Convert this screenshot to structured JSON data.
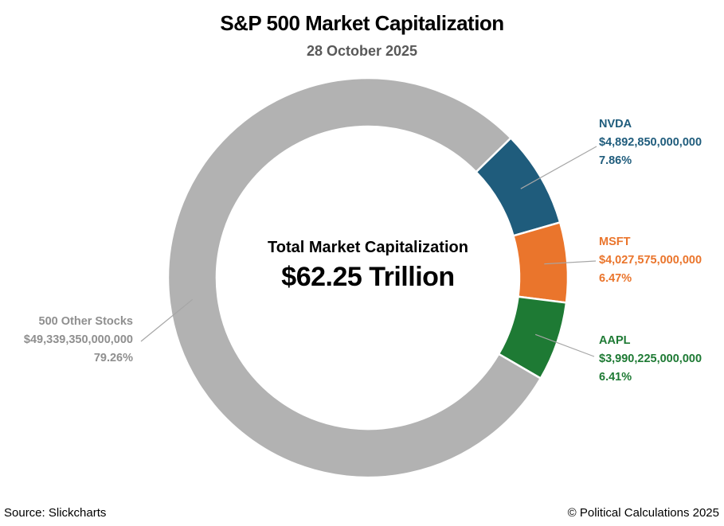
{
  "chart_data": {
    "type": "pie",
    "donut": true,
    "title": "S&P 500 Market Capitalization",
    "subtitle": "28 October 2025",
    "total_label": "Total Market Capitalization",
    "total_value": "$62.25 Trillion",
    "start_angle_deg": 45.6,
    "donut_hole_ratio": 0.757,
    "legend": "none",
    "labels_position": "outside-with-leader-lines",
    "slices": [
      {
        "name": "NVDA",
        "value": 4892850000000,
        "value_label": "$4,892,850,000,000",
        "percent": 7.86,
        "percent_label": "7.86%",
        "color": "#1F5C7C",
        "label_side": "right"
      },
      {
        "name": "MSFT",
        "value": 4027575000000,
        "value_label": "$4,027,575,000,000",
        "percent": 6.47,
        "percent_label": "6.47%",
        "color": "#EA752C",
        "label_side": "right"
      },
      {
        "name": "AAPL",
        "value": 3990225000000,
        "value_label": "$3,990,225,000,000",
        "percent": 6.41,
        "percent_label": "6.41%",
        "color": "#1E7A34",
        "label_side": "right"
      },
      {
        "name": "500 Other Stocks",
        "value": 49339350000000,
        "value_label": "$49,339,350,000,000",
        "percent": 79.26,
        "percent_label": "79.26%",
        "color": "#B2B2B2",
        "label_color": "#8F8F8F",
        "label_side": "left"
      }
    ],
    "leader_line_color": "#A6A6A6"
  },
  "footer": {
    "source": "Source: Slickcharts",
    "copyright": "© Political Calculations 2025"
  }
}
